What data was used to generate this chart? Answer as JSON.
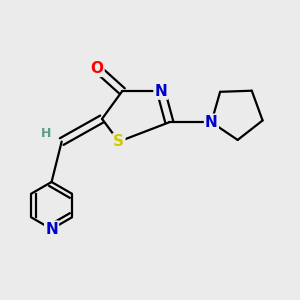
{
  "background_color": "#ebebeb",
  "bond_color": "#000000",
  "bond_width": 1.6,
  "atom_colors": {
    "O": "#ff0000",
    "N": "#0000cc",
    "S": "#cccc00",
    "H": "#5a9e8f",
    "C": "#000000"
  },
  "font_size_atoms": 11
}
